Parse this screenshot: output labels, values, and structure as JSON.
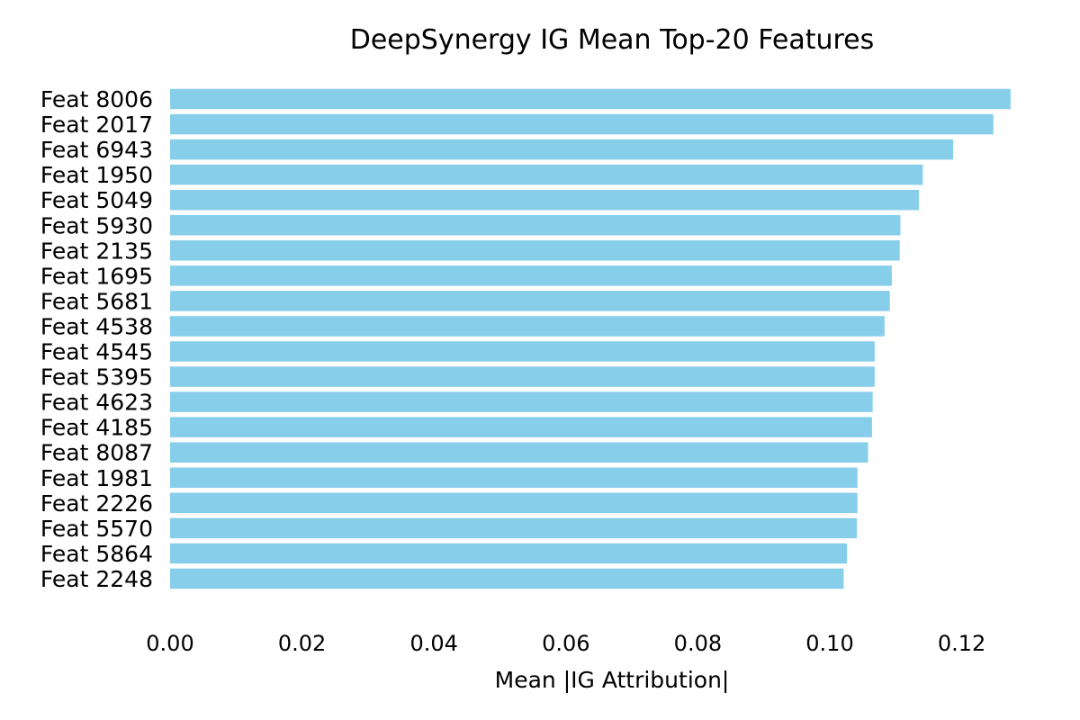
{
  "chart_data": {
    "type": "bar",
    "orientation": "horizontal",
    "title": "DeepSynergy IG Mean Top-20 Features",
    "xlabel": "Mean |IG Attribution|",
    "ylabel": "",
    "xlim": [
      0,
      0.13
    ],
    "xticks": [
      "0.00",
      "0.02",
      "0.04",
      "0.06",
      "0.08",
      "0.10",
      "0.12"
    ],
    "grid": false,
    "bar_color": "#87ceeb",
    "categories": [
      "Feat 8006",
      "Feat 2017",
      "Feat 6943",
      "Feat 1950",
      "Feat 5049",
      "Feat 5930",
      "Feat 2135",
      "Feat 1695",
      "Feat 5681",
      "Feat 4538",
      "Feat 4545",
      "Feat 5395",
      "Feat 4623",
      "Feat 4185",
      "Feat 8087",
      "Feat 1981",
      "Feat 2226",
      "Feat 5570",
      "Feat 5864",
      "Feat 2248"
    ],
    "values": [
      0.1274,
      0.1248,
      0.1187,
      0.1141,
      0.1135,
      0.1107,
      0.1106,
      0.1094,
      0.1091,
      0.1083,
      0.1068,
      0.1068,
      0.1065,
      0.1064,
      0.1058,
      0.1042,
      0.1042,
      0.1041,
      0.1026,
      0.1021
    ]
  }
}
